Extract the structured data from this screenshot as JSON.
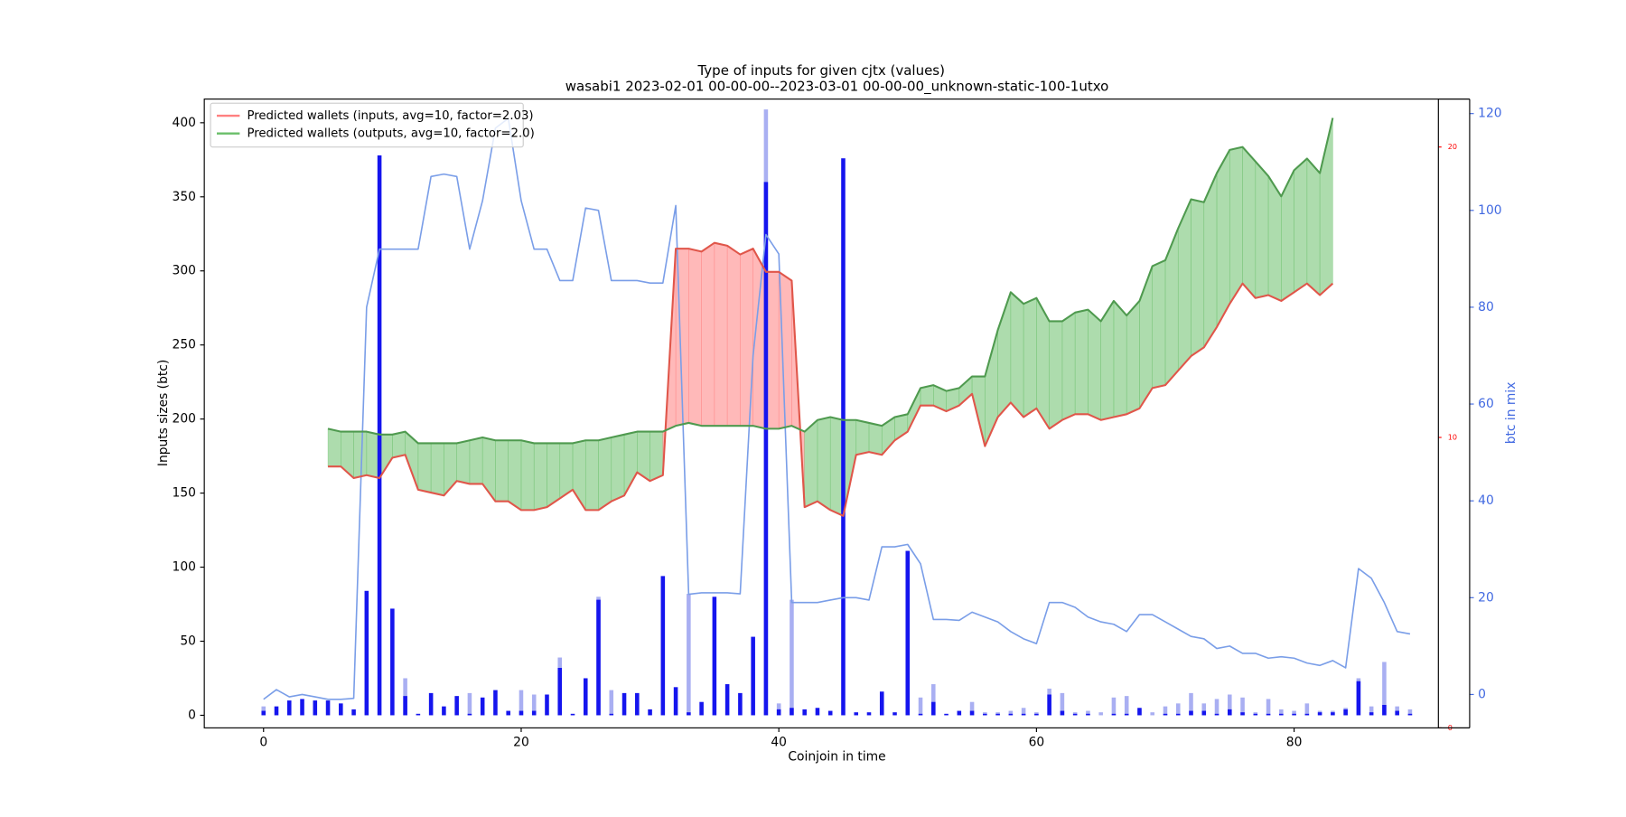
{
  "chart_data": {
    "type": "combo",
    "title": "Type of inputs for given cjtx (values)",
    "subtitle": "wasabi1 2023-02-01 00-00-00--2023-03-01 00-00-00_unknown-static-100-1utxo",
    "x_label": "Coinjoin in time",
    "y_label": "Inputs sizes (btc)",
    "y3_label": "btc in mix",
    "legend": "upper left",
    "x": [
      0,
      1,
      2,
      3,
      4,
      5,
      6,
      7,
      8,
      9,
      10,
      11,
      12,
      13,
      14,
      15,
      16,
      17,
      18,
      19,
      20,
      21,
      22,
      23,
      24,
      25,
      26,
      27,
      28,
      29,
      30,
      31,
      32,
      33,
      34,
      35,
      36,
      37,
      38,
      39,
      40,
      41,
      42,
      43,
      44,
      45,
      46,
      47,
      48,
      49,
      50,
      51,
      52,
      53,
      54,
      55,
      56,
      57,
      58,
      59,
      60,
      61,
      62,
      63,
      64,
      65,
      66,
      67,
      68,
      69,
      70,
      71,
      72,
      73,
      74,
      75,
      76,
      77,
      78,
      79,
      80,
      81,
      82,
      83,
      84,
      85,
      86,
      87,
      88,
      89
    ],
    "xlim": [
      -4.6,
      91.2
    ],
    "xticks": [
      0,
      20,
      40,
      60,
      80
    ],
    "ylim": [
      -8.5,
      416
    ],
    "yticks": [
      0,
      50,
      100,
      150,
      200,
      250,
      300,
      350,
      400
    ],
    "y2lim": [
      0,
      21.65
    ],
    "y2ticks": [
      0,
      10,
      20
    ],
    "y2_color": "#ff0000",
    "y3lim": [
      -6.9,
      123
    ],
    "y3ticks": [
      0,
      20,
      40,
      60,
      80,
      100,
      120
    ],
    "y3_color": "#4169e1",
    "series": [
      {
        "type": "bar",
        "color": "#a9aff2",
        "values": [
          6,
          0,
          0,
          0,
          0,
          0,
          0,
          0,
          0,
          0,
          0,
          25,
          0,
          0,
          0,
          0,
          15,
          0,
          0,
          0,
          17,
          14,
          0,
          39,
          0,
          0,
          80,
          17,
          0,
          0,
          0,
          0,
          0,
          82,
          0,
          0,
          0,
          0,
          0,
          409,
          8,
          78,
          0,
          0,
          0,
          0,
          0,
          0,
          0,
          0,
          0,
          12,
          21,
          0,
          0,
          9,
          2,
          2,
          3,
          5,
          2,
          18,
          15,
          2,
          3,
          2,
          12,
          13,
          4,
          2,
          6,
          8,
          15,
          8,
          11,
          14,
          12,
          2,
          11,
          4,
          3,
          8,
          3,
          3,
          5,
          25,
          6,
          36,
          6,
          4
        ]
      },
      {
        "type": "bar",
        "color": "#1515ee",
        "values": [
          3,
          6,
          10,
          11,
          10,
          10,
          8,
          4,
          84,
          378,
          72,
          13,
          1,
          15,
          6,
          13,
          1,
          12,
          17,
          3,
          3,
          3,
          14,
          32,
          1,
          25,
          78,
          1,
          15,
          15,
          4,
          94,
          19,
          2,
          9,
          80,
          21,
          15,
          53,
          360,
          4,
          5,
          4,
          5,
          3,
          376,
          2,
          2,
          16,
          2,
          111,
          1,
          9,
          1,
          3,
          3,
          1,
          1,
          1,
          1,
          1,
          14,
          3,
          1,
          1,
          0,
          1,
          1,
          5,
          0,
          1,
          1,
          3,
          3,
          1,
          4,
          2,
          1,
          1,
          1,
          1,
          1,
          2,
          2,
          4,
          23,
          2,
          7,
          3,
          1
        ]
      },
      {
        "type": "line",
        "axis": "y3",
        "color": "#7a9ee8",
        "values": [
          -1,
          1,
          -0.5,
          0,
          -0.5,
          -1,
          -1,
          -0.8,
          80,
          92,
          92,
          92,
          92,
          107,
          107.5,
          107,
          92,
          102,
          117,
          119,
          102,
          92,
          92,
          85.5,
          85.5,
          100.5,
          100,
          85.5,
          85.5,
          85.5,
          85,
          85,
          101,
          20.7,
          21,
          21,
          21,
          20.8,
          70,
          95,
          91,
          19,
          19,
          19,
          19.5,
          20,
          20,
          19.5,
          30.5,
          30.5,
          31,
          27,
          15.5,
          15.5,
          15.3,
          17,
          16,
          15,
          13,
          11.5,
          10.5,
          19,
          19,
          18,
          16,
          15,
          14.5,
          13,
          16.5,
          16.5,
          15,
          13.5,
          12,
          11.5,
          9.5,
          10,
          8.5,
          8.5,
          7.5,
          7.8,
          7.5,
          6.5,
          6,
          7,
          5.5,
          26,
          24,
          19,
          13,
          12.5
        ]
      },
      {
        "name": "Predicted wallets (inputs, avg=10, factor=2.03)",
        "type": "line",
        "axis": "y2",
        "fill": true,
        "color": "#e0564a",
        "fill_color": "#ff8080",
        "values": [
          null,
          null,
          null,
          null,
          null,
          9.0,
          9.0,
          8.6,
          8.7,
          8.6,
          9.3,
          9.4,
          8.2,
          8.1,
          8.0,
          8.5,
          8.4,
          8.4,
          7.8,
          7.8,
          7.5,
          7.5,
          7.6,
          7.9,
          8.2,
          7.5,
          7.5,
          7.8,
          8.0,
          8.8,
          8.5,
          8.7,
          16.5,
          16.5,
          16.4,
          16.7,
          16.6,
          16.3,
          16.5,
          15.7,
          15.7,
          15.4,
          7.6,
          7.8,
          7.5,
          7.3,
          9.4,
          9.5,
          9.4,
          9.9,
          10.2,
          11.1,
          11.1,
          10.9,
          11.1,
          11.5,
          9.7,
          10.7,
          11.2,
          10.7,
          11.0,
          10.3,
          10.6,
          10.8,
          10.8,
          10.6,
          10.7,
          10.8,
          11.0,
          11.7,
          11.8,
          12.3,
          12.8,
          13.1,
          13.8,
          14.6,
          15.3,
          14.8,
          14.9,
          14.7,
          15.0,
          15.3,
          14.9,
          15.3,
          null,
          null,
          null,
          null,
          null,
          null
        ]
      },
      {
        "name": "Predicted wallets (outputs, avg=10, factor=2.0)",
        "type": "line",
        "axis": "y2",
        "fill": true,
        "color": "#4f9a4f",
        "fill_color": "#6abf69",
        "values": [
          null,
          null,
          null,
          null,
          null,
          10.3,
          10.2,
          10.2,
          10.2,
          10.1,
          10.1,
          10.2,
          9.8,
          9.8,
          9.8,
          9.8,
          9.9,
          10.0,
          9.9,
          9.9,
          9.9,
          9.8,
          9.8,
          9.8,
          9.8,
          9.9,
          9.9,
          10.0,
          10.1,
          10.2,
          10.2,
          10.2,
          10.4,
          10.5,
          10.4,
          10.4,
          10.4,
          10.4,
          10.4,
          10.3,
          10.3,
          10.4,
          10.2,
          10.6,
          10.7,
          10.6,
          10.6,
          10.5,
          10.4,
          10.7,
          10.8,
          11.7,
          11.8,
          11.6,
          11.7,
          12.1,
          12.1,
          13.7,
          15.0,
          14.6,
          14.8,
          14.0,
          14.0,
          14.3,
          14.4,
          14.0,
          14.7,
          14.2,
          14.7,
          15.9,
          16.1,
          17.2,
          18.2,
          18.1,
          19.1,
          19.9,
          20.0,
          19.5,
          19.0,
          18.3,
          19.2,
          19.6,
          19.1,
          21.0,
          null,
          null,
          null,
          null,
          null,
          null
        ]
      }
    ]
  }
}
